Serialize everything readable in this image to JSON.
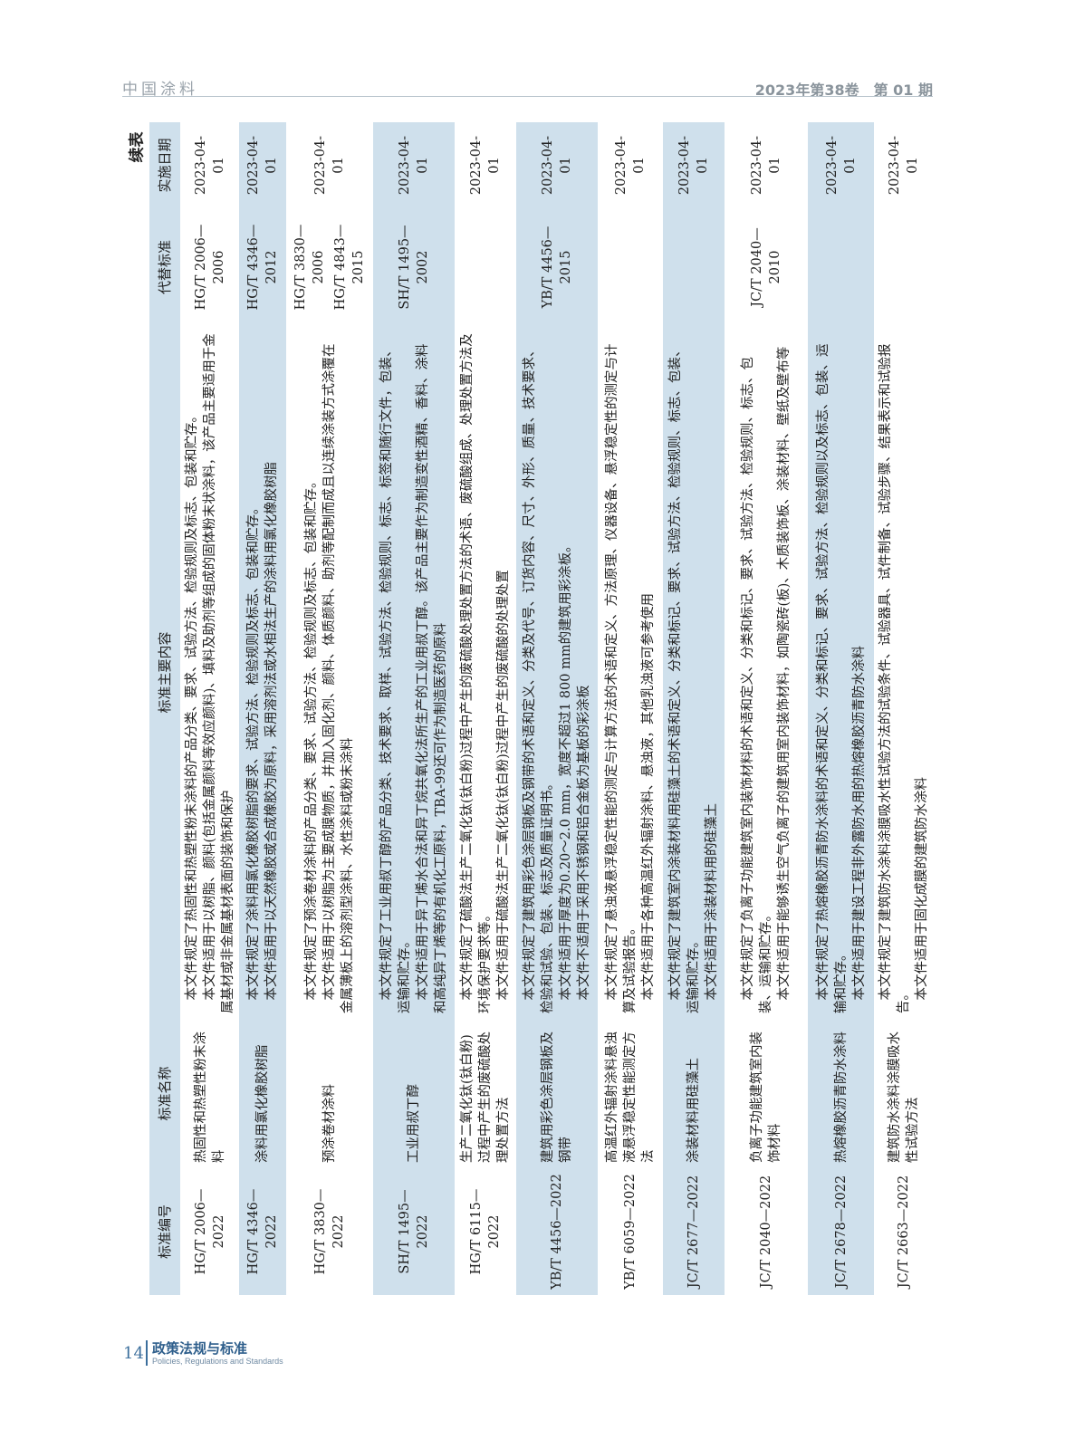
{
  "header": {
    "journal": "中国涂料",
    "issue": "2023年第38卷　第 01 期"
  },
  "continued_label": "续表",
  "table": {
    "columns": [
      "标准编号",
      "标准名称",
      "标准主要内容",
      "代替标准",
      "实施日期"
    ],
    "rows": [
      {
        "id": "HG/T 2006—2022",
        "name": "热固性和热塑性粉末涂料",
        "content": [
          "本文件规定了热固性和热塑性粉末涂料的产品分类、要求、试验方法、检验规则及标志、包装和贮存。",
          "本文件适用于以树脂、颜料(包括金属颜料等效应颜料)、填料及助剂等组成的固体粉末状涂料，该产品主要适用于金属基材或非金属基材表面的装饰和保护"
        ],
        "replaces": [
          "HG/T 2006—2006"
        ],
        "date": "2023-04-01"
      },
      {
        "id": "HG/T 4346—2022",
        "name": "涂料用氯化橡胶树脂",
        "content": [
          "本文件规定了涂料用氯化橡胶树脂的要求、试验方法、检验规则及标志、包装和贮存。",
          "本文件适用于以天然橡胶或合成橡胶为原料，采用溶剂法或水相法生产的涂料用氯化橡胶树脂"
        ],
        "replaces": [
          "HG/T 4346—2012"
        ],
        "date": "2023-04-01"
      },
      {
        "id": "HG/T 3830—2022",
        "name": "预涂卷材涂料",
        "content": [
          "本文件规定了预涂卷材涂料的产品分类、要求、试验方法、检验规则及标志、包装和贮存。",
          "本文件适用于以树脂为主要成膜物质，并加入固化剂、颜料、体质颜料、助剂等配制而成且以连续涂装方式涂覆在金属薄板上的溶剂型涂料、水性涂料或粉末涂料"
        ],
        "replaces": [
          "HG/T 3830—2006",
          "HG/T 4843—2015"
        ],
        "date": "2023-04-01"
      },
      {
        "id": "SH/T 1495—2022",
        "name": "工业用叔丁醇",
        "content": [
          "本文件规定了工业用叔丁醇的产品分类、技术要求、取样、试验方法、检验规则、标志、标签和随行文件，包装、运输和贮存。",
          "本文件适用于异丁烯水合法和异丁烷共氧化法所生产的工业用叔丁醇。该产品主要作为制造变性酒精、香料、涂料和高纯异丁烯等的有机化工原料，TBA-99还可作为制造医药的原料"
        ],
        "replaces": [
          "SH/T 1495—2002"
        ],
        "date": "2023-04-01"
      },
      {
        "id": "HG/T 6115—2022",
        "name": "生产二氧化钛(钛白粉)过程中产生的废硫酸处理处置方法",
        "content": [
          "本文件规定了硫酸法生产二氧化钛(钛白粉)过程中产生的废硫酸处理处置方法的术语、废硫酸组成、处理处置方法及环境保护要求等。",
          "本文件适用于硫酸法生产二氧化钛(钛白粉)过程中产生的废硫酸的处理处置"
        ],
        "replaces": [],
        "date": "2023-04-01"
      },
      {
        "id": "YB/T 4456—2022",
        "name": "建筑用彩色涂层钢板及钢带",
        "content": [
          "本文件规定了建筑用彩色涂层钢板及钢带的术语和定义、分类及代号、订货内容、尺寸、外形、质量、技术要求、检验和试验、包装、标志及质量证明书。",
          "本文件适用于厚度为0.20～2.0 mm，宽度不超过1 800 mm的建筑用彩涂板。",
          "本文件不适用于采用不锈钢和铝合金板为基板的彩涂板"
        ],
        "replaces": [
          "YB/T 4456—2015"
        ],
        "date": "2023-04-01"
      },
      {
        "id": "YB/T 6059—2022",
        "name": "高温红外辐射涂料悬浊液悬浮稳定性能测定方法",
        "content": [
          "本文件规定了悬浊液悬浮稳定性能的测定与计算方法的术语和定义、方法原理、仪器设备、悬浮稳定性的测定与计算及试验报告。",
          "本文件适用于各种高温红外辐射涂料、悬浊液，其他乳浊液可参考使用"
        ],
        "replaces": [],
        "date": "2023-04-01"
      },
      {
        "id": "JC/T 2677—2022",
        "name": "涂装材料用硅藻土",
        "content": [
          "本文件规定了建筑室内涂装材料用硅藻土的术语和定义、分类和标记、要求、试验方法、检验规则、标志、包装、运输和贮存。",
          "本文件适用于涂装材料用的硅藻土"
        ],
        "replaces": [],
        "date": "2023-04-01"
      },
      {
        "id": "JC/T 2040—2022",
        "name": "负离子功能建筑室内装饰材料",
        "content": [
          "本文件规定了负离子功能建筑室内装饰材料的术语和定义、分类和标记、要求、试验方法、检验规则、标志、包装、运输和贮存。",
          "本文件适用于能够诱生空气负离子的建筑用室内装饰材料，如陶瓷砖(板)、木质装饰板、涂装材料、壁纸及壁布等"
        ],
        "replaces": [
          "JC/T 2040—2010"
        ],
        "date": "2023-04-01"
      },
      {
        "id": "JC/T 2678—2022",
        "name": "热熔橡胶沥青防水涂料",
        "content": [
          "本文件规定了热熔橡胶沥青防水涂料的术语和定义、分类和标记、要求、试验方法、检验规则以及标志、包装、运输和贮存。",
          "本文件适用于建设工程非外露防水用的热熔橡胶沥青防水涂料"
        ],
        "replaces": [],
        "date": "2023-04-01"
      },
      {
        "id": "JC/T 2663—2022",
        "name": "建筑防水涂料涂膜吸水性试验方法",
        "content": [
          "本文件规定了建筑防水涂料涂膜吸水性试验方法的试验条件、试验器具、试件制备、试验步骤、结果表示和试验报告。",
          "本文件适用于固化成膜的建筑防水涂料"
        ],
        "replaces": [],
        "date": "2023-04-01"
      }
    ]
  },
  "footer": {
    "page": "14",
    "section": "政策法规与标准",
    "section_en": "Policies, Regulations and Standards"
  },
  "colors": {
    "row_shade": "#cfe0ec",
    "accent": "#3b6e9c"
  }
}
